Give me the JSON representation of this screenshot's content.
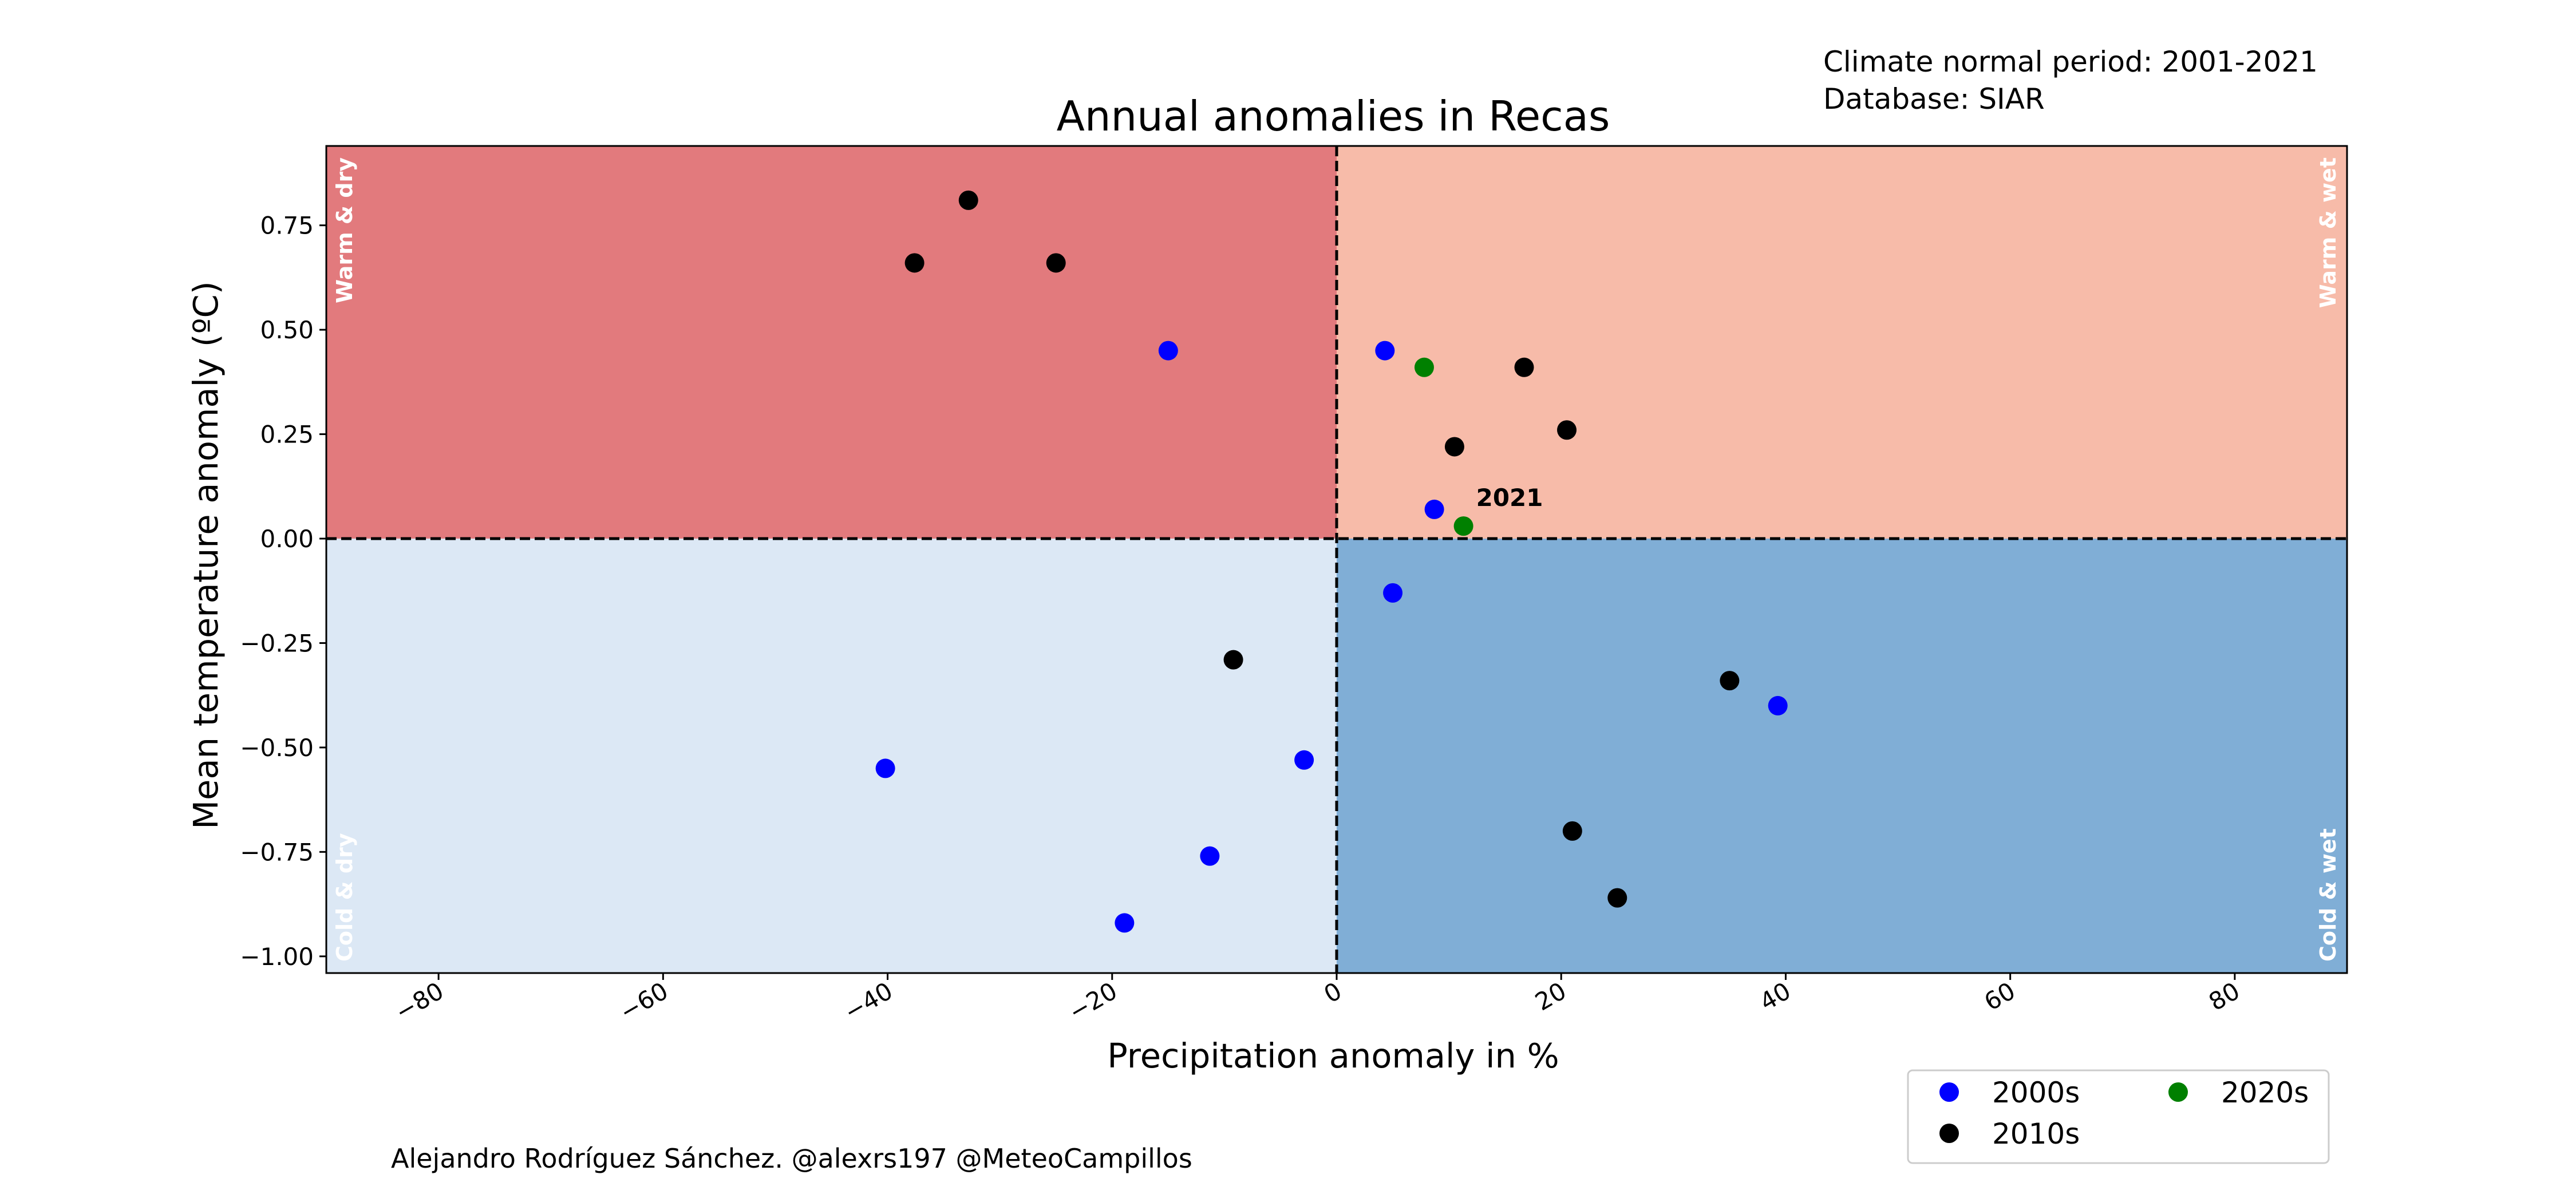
{
  "chart_data": {
    "type": "scatter",
    "title": "Annual anomalies in Recas",
    "xlabel": "Precipitation anomaly in %",
    "ylabel": "Mean temperature anomaly (ºC)",
    "xlim": [
      -90,
      90
    ],
    "ylim": [
      -1.04,
      0.94
    ],
    "xticks": [
      -80,
      -60,
      -40,
      -20,
      0,
      20,
      40,
      60,
      80
    ],
    "xtick_labels": [
      "−80",
      "−60",
      "−40",
      "−20",
      "0",
      "20",
      "40",
      "60",
      "80"
    ],
    "yticks": [
      -1.0,
      -0.75,
      -0.5,
      -0.25,
      0.0,
      0.25,
      0.5,
      0.75
    ],
    "ytick_labels": [
      "−1.00",
      "−0.75",
      "−0.50",
      "−0.25",
      "0.00",
      "0.25",
      "0.50",
      "0.75"
    ],
    "grid": false,
    "legend_position": "lower-right, below plot",
    "quadrants": [
      {
        "label": "Warm & dry",
        "color": "#e27a7d"
      },
      {
        "label": "Warm & wet",
        "color": "#f7bba9"
      },
      {
        "label": "Cold & dry",
        "color": "#dce8f5"
      },
      {
        "label": "Cold & wet",
        "color": "#80aed6"
      }
    ],
    "series": [
      {
        "name": "2000s",
        "color": "#0000ff",
        "points": [
          {
            "x": -15,
            "y": 0.45
          },
          {
            "x": 4.3,
            "y": 0.45
          },
          {
            "x": 8.7,
            "y": 0.07
          },
          {
            "x": 5,
            "y": -0.13
          },
          {
            "x": 39.3,
            "y": -0.4
          },
          {
            "x": -2.9,
            "y": -0.53
          },
          {
            "x": -40.2,
            "y": -0.55
          },
          {
            "x": -11.3,
            "y": -0.76
          },
          {
            "x": -18.9,
            "y": -0.92
          }
        ]
      },
      {
        "name": "2010s",
        "color": "#000000",
        "points": [
          {
            "x": -32.8,
            "y": 0.81
          },
          {
            "x": -37.6,
            "y": 0.66
          },
          {
            "x": -25,
            "y": 0.66
          },
          {
            "x": 16.7,
            "y": 0.41
          },
          {
            "x": 20.5,
            "y": 0.26
          },
          {
            "x": 10.5,
            "y": 0.22
          },
          {
            "x": -9.2,
            "y": -0.29
          },
          {
            "x": 35,
            "y": -0.34
          },
          {
            "x": 21,
            "y": -0.7
          },
          {
            "x": 25,
            "y": -0.86
          }
        ]
      },
      {
        "name": "2020s",
        "color": "#008000",
        "points": [
          {
            "x": 7.8,
            "y": 0.41
          },
          {
            "x": 11.3,
            "y": 0.03
          }
        ]
      }
    ],
    "annotations": [
      {
        "text": "2021",
        "x": 11.3,
        "y": 0.03
      }
    ],
    "reference_lines": {
      "x": 0,
      "y": 0
    }
  },
  "header": {
    "normal_period": "Climate normal period: 2001-2021",
    "database": "Database: SIAR"
  },
  "footer": {
    "credit": "Alejandro Rodríguez Sánchez. @alexrs197 @MeteoCampillos"
  }
}
